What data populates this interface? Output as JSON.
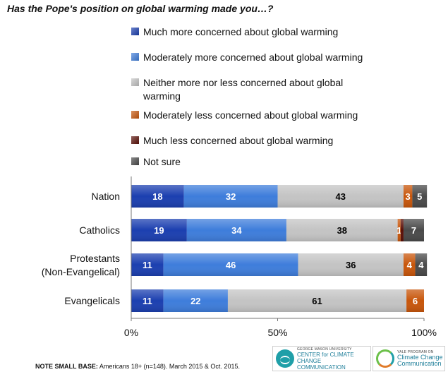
{
  "title": "Has the Pope's position on global warming made you…?",
  "footnote": {
    "label": "NOTE SMALL BASE:",
    "text": " Americans 18+ (n=148). March 2015 & Oct. 2015."
  },
  "logos": {
    "gmu": {
      "small": "GEORGE MASON UNIVERSITY",
      "line1": "CENTER for CLIMATE CHANGE",
      "line2": "COMMUNICATION"
    },
    "yale": {
      "small": "YALE PROGRAM ON",
      "line1": "Climate Change",
      "line2": "Communication"
    }
  },
  "chart_data": {
    "type": "bar",
    "orientation": "horizontal",
    "stacked": true,
    "title": "Has the Pope's position on global warming made you…?",
    "categories": [
      [
        "Nation"
      ],
      [
        "Catholics"
      ],
      [
        "Protestants",
        "(Non-Evangelical)"
      ],
      [
        "Evangelicals"
      ]
    ],
    "series": [
      {
        "name": "Much more concerned about global warming",
        "color": "#1b3fb0",
        "label_color": "#ffffff",
        "values": [
          18,
          19,
          11,
          11
        ]
      },
      {
        "name": "Moderately more concerned about global warming",
        "color": "#3e7ddb",
        "label_color": "#ffffff",
        "values": [
          32,
          34,
          46,
          22
        ]
      },
      {
        "name": "Neither more nor less concerned about global warming",
        "color": "#c4c4c4",
        "label_color": "#000000",
        "values": [
          43,
          38,
          36,
          61
        ]
      },
      {
        "name": "Moderately less concerned about global warming",
        "color": "#c8560b",
        "label_color": "#ffffff",
        "values": [
          3,
          1,
          4,
          6
        ]
      },
      {
        "name": "Much less concerned about global warming",
        "color": "#5a0f08",
        "label_color": "#ffffff",
        "values": [
          0,
          1,
          0,
          0
        ]
      },
      {
        "name": "Not sure",
        "color": "#4a4a4a",
        "label_color": "#ffffff",
        "values": [
          5,
          7,
          4,
          0
        ]
      }
    ],
    "data_labels": [
      [
        "18",
        "32",
        "43",
        "3",
        "",
        "5"
      ],
      [
        "19",
        "34",
        "38",
        "1",
        "",
        "7"
      ],
      [
        "11",
        "46",
        "36",
        "4",
        "",
        "4"
      ],
      [
        "11",
        "22",
        "61",
        "6",
        "",
        ""
      ]
    ],
    "xlim": [
      0,
      100
    ],
    "xticks": [
      "0%",
      "50%",
      "100%"
    ],
    "xtick_values": [
      0,
      50,
      100
    ],
    "legend_position": "top",
    "grid": false
  }
}
